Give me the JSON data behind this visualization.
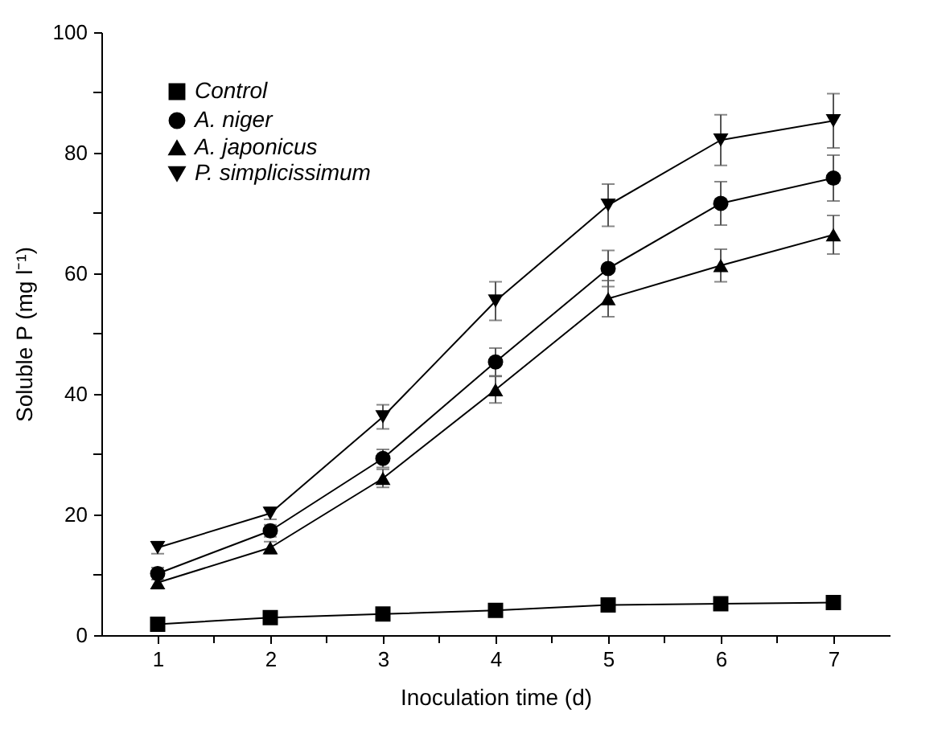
{
  "chart_data": {
    "type": "line",
    "xlabel": "Inoculation time (d)",
    "ylabel": "Soluble P (mg l⁻¹)",
    "x": [
      1,
      2,
      3,
      4,
      5,
      6,
      7
    ],
    "xlim": [
      0.5,
      7.5
    ],
    "xticks": [
      1,
      {
        "value": 1.5,
        "label": null
      },
      2,
      {
        "value": 2.5,
        "label": null
      },
      3,
      {
        "value": 3.5,
        "label": null
      },
      4,
      {
        "value": 4.5,
        "label": null
      },
      5,
      {
        "value": 5.5,
        "label": null
      },
      6,
      {
        "value": 6.5,
        "label": null
      },
      7
    ],
    "ylim": [
      0,
      100
    ],
    "yticks": [
      0,
      {
        "value": 10,
        "label": null
      },
      20,
      {
        "value": 30,
        "label": null
      },
      40,
      {
        "value": 50,
        "label": null
      },
      60,
      {
        "value": 70,
        "label": null
      },
      80,
      {
        "value": 90,
        "label": null
      },
      100
    ],
    "grid": false,
    "legend": "top left",
    "series": [
      {
        "name": "Control",
        "color": "#000000",
        "marker": "square",
        "values": [
          1.8,
          2.9,
          3.5,
          4.1,
          5.0,
          5.2,
          5.4
        ]
      },
      {
        "name": "A. niger",
        "color": "#000000",
        "marker": "circle",
        "values": [
          10.2,
          17.3,
          29.3,
          45.3,
          60.8,
          71.6,
          75.8
        ],
        "errors": [
          1,
          1,
          1.5,
          2.3,
          3,
          3.6,
          3.8
        ]
      },
      {
        "name": "A. japonicus",
        "color": "#000000",
        "marker": "triangle",
        "values": [
          8.7,
          14.5,
          26,
          40.7,
          55.8,
          61.3,
          66.4
        ],
        "errors": [
          1,
          1,
          1.5,
          2.2,
          3,
          2.7,
          3.2
        ]
      },
      {
        "name": "P. simplicissimum",
        "color": "#000000",
        "marker": "triangle-down",
        "values": [
          14.5,
          20.2,
          36.2,
          55.4,
          71.3,
          82.1,
          85.3
        ],
        "errors": [
          1,
          1,
          2,
          3.2,
          3.5,
          4.2,
          4.5
        ]
      }
    ]
  }
}
